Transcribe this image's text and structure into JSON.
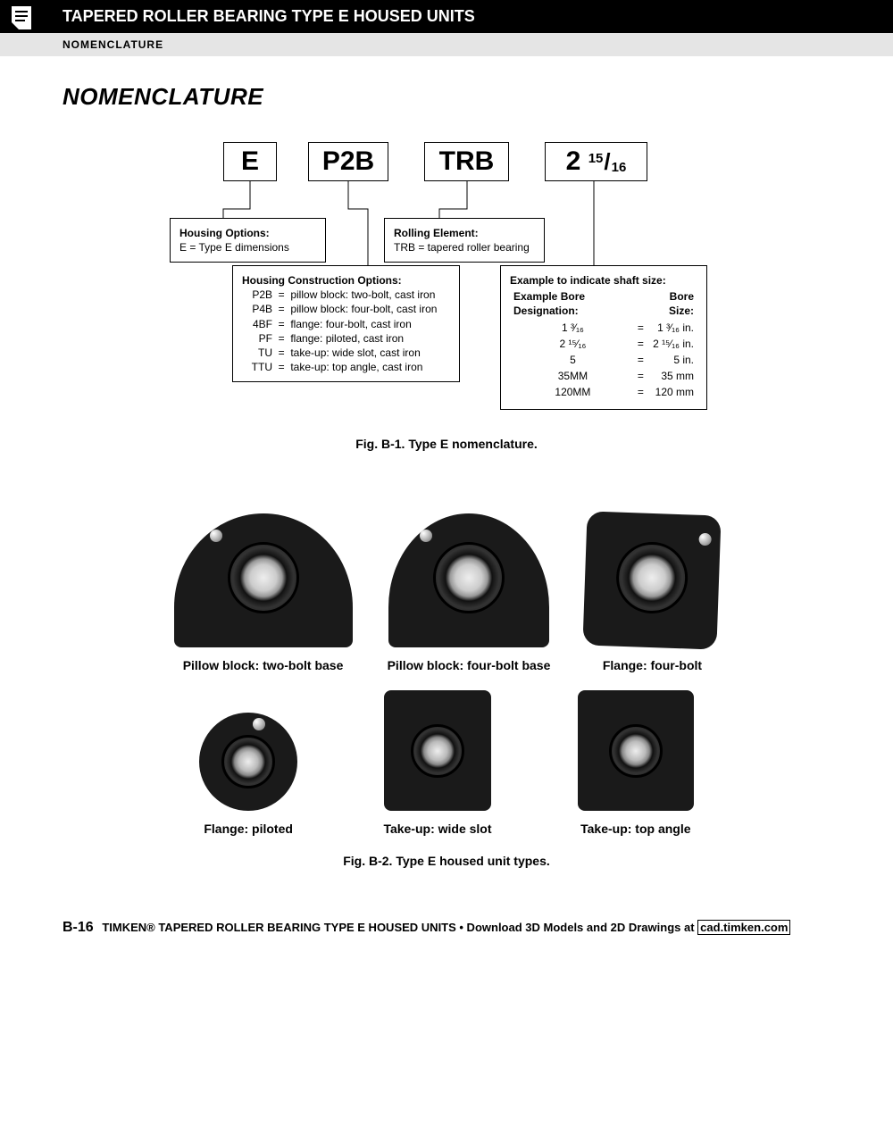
{
  "header": {
    "title": "TAPERED ROLLER BEARING TYPE E HOUSED UNITS",
    "subtitle": "NOMENCLATURE"
  },
  "section_title": "NOMENCLATURE",
  "codes": {
    "c1": "E",
    "c2": "P2B",
    "c3": "TRB",
    "c4_int": "2",
    "c4_num": "15",
    "c4_den": "16"
  },
  "housing_options": {
    "title": "Housing Options:",
    "line": "E = Type E dimensions"
  },
  "rolling_element": {
    "title": "Rolling Element:",
    "line": "TRB = tapered roller bearing"
  },
  "construction": {
    "title": "Housing Construction Options:",
    "rows": [
      {
        "code": "P2B",
        "desc": "pillow block: two-bolt, cast iron"
      },
      {
        "code": "P4B",
        "desc": "pillow block: four-bolt, cast iron"
      },
      {
        "code": "4BF",
        "desc": "flange: four-bolt, cast iron"
      },
      {
        "code": "PF",
        "desc": "flange: piloted, cast iron"
      },
      {
        "code": "TU",
        "desc": "take-up: wide slot, cast iron"
      },
      {
        "code": "TTU",
        "desc": "take-up: top angle, cast iron"
      }
    ]
  },
  "shaft_size": {
    "title": "Example to indicate shaft size:",
    "col1": "Example Bore Designation:",
    "col2": "Bore Size:",
    "rows": [
      {
        "d": "1 ³⁄₁₆",
        "s": "1 ³⁄₁₆ in."
      },
      {
        "d": "2 ¹⁵⁄₁₆",
        "s": "2 ¹⁵⁄₁₆ in."
      },
      {
        "d": "5",
        "s": "5 in."
      },
      {
        "d": "35MM",
        "s": "35 mm"
      },
      {
        "d": "120MM",
        "s": "120 mm"
      }
    ]
  },
  "fig1_caption": "Fig. B-1. Type E nomenclature.",
  "products_row1": [
    {
      "label": "Pillow block: two-bolt base"
    },
    {
      "label": "Pillow block: four-bolt base"
    },
    {
      "label": "Flange: four-bolt"
    }
  ],
  "products_row2": [
    {
      "label": "Flange: piloted"
    },
    {
      "label": "Take-up: wide slot"
    },
    {
      "label": "Take-up: top angle"
    }
  ],
  "fig2_caption": "Fig. B-2. Type E housed unit types.",
  "footer": {
    "page": "B-16",
    "text": "TIMKEN® TAPERED ROLLER BEARING TYPE E HOUSED UNITS • Download 3D Models and 2D Drawings at",
    "link_label": "cad.timken.com"
  },
  "styling": {
    "header_bg": "#000000",
    "header_fg": "#ffffff",
    "sub_bg": "#e5e5e5",
    "border": "#000000",
    "product_fill": "#1a1a1a",
    "diagram_width": 620,
    "diagram_height": 300,
    "code_box_font_size": 30,
    "info_font_size": 12,
    "caption_font_size": 14
  }
}
